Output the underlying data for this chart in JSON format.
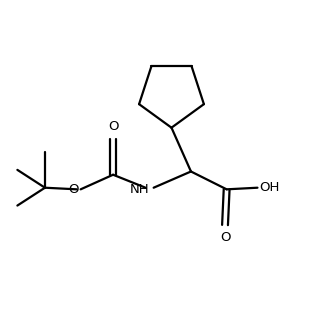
{
  "background_color": "#ffffff",
  "line_color": "#000000",
  "line_width": 1.6,
  "font_size": 9.5,
  "figsize": [
    3.3,
    3.3
  ],
  "dpi": 100,
  "xlim": [
    0,
    10
  ],
  "ylim": [
    0,
    10
  ]
}
